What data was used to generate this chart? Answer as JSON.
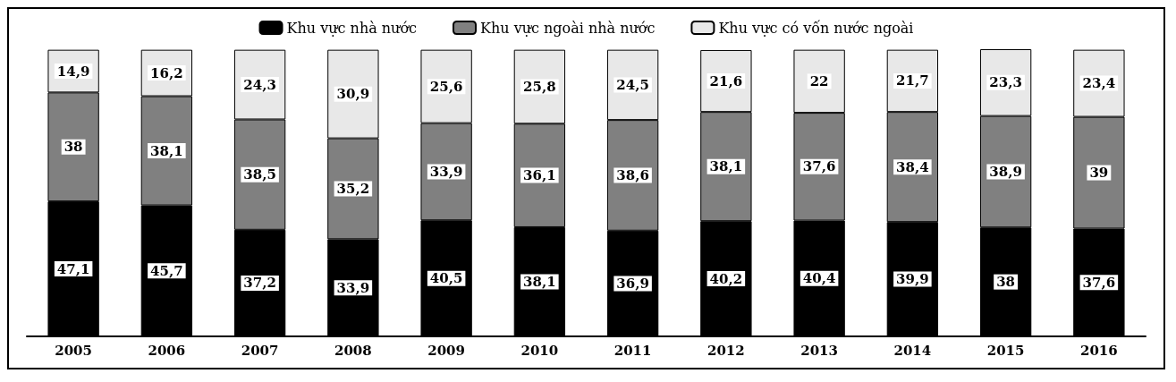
{
  "chart_data": {
    "type": "bar",
    "stacked": true,
    "legend": "top",
    "tick_labels": "x",
    "categories": [
      "2005",
      "2006",
      "2007",
      "2008",
      "2009",
      "2010",
      "2011",
      "2012",
      "2013",
      "2014",
      "2015",
      "2016"
    ],
    "series": [
      {
        "name": "Khu vực nhà nước",
        "color": "#000000",
        "values": [
          47.1,
          45.7,
          37.2,
          33.9,
          40.5,
          38.1,
          36.9,
          40.2,
          40.4,
          39.9,
          38,
          37.6
        ],
        "value_labels": [
          "47,1",
          "45,7",
          "37,2",
          "33,9",
          "40,5",
          "38,1",
          "36,9",
          "40,2",
          "40,4",
          "39,9",
          "38",
          "37,6"
        ]
      },
      {
        "name": "Khu vực ngoài nhà nước",
        "color": "#808080",
        "values": [
          38,
          38.1,
          38.5,
          35.2,
          33.9,
          36.1,
          38.6,
          38.1,
          37.6,
          38.4,
          38.9,
          39
        ],
        "value_labels": [
          "38",
          "38,1",
          "38,5",
          "35,2",
          "33,9",
          "36,1",
          "38,6",
          "38,1",
          "37,6",
          "38,4",
          "38,9",
          "39"
        ]
      },
      {
        "name": "Khu vực có vốn nước ngoài",
        "color": "#e8e8e8",
        "values": [
          14.9,
          16.2,
          24.3,
          30.9,
          25.6,
          25.8,
          24.5,
          21.6,
          22,
          21.7,
          23.3,
          23.4
        ],
        "value_labels": [
          "14,9",
          "16,2",
          "24,3",
          "30,9",
          "25,6",
          "25,8",
          "24,5",
          "21,6",
          "22",
          "21,7",
          "23,3",
          "23,4"
        ]
      }
    ]
  }
}
